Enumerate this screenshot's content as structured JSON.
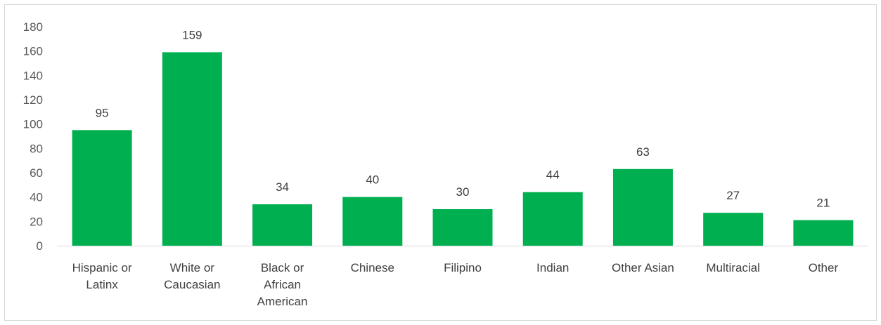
{
  "chart_data": {
    "type": "bar",
    "title": "",
    "xlabel": "",
    "ylabel": "",
    "ylim": [
      0,
      180
    ],
    "y_ticks": [
      0,
      20,
      40,
      60,
      80,
      100,
      120,
      140,
      160,
      180
    ],
    "grid": false,
    "legend": "none",
    "categories": [
      [
        "Hispanic or",
        "Latinx"
      ],
      [
        "White or",
        "Caucasian"
      ],
      [
        "Black or",
        "African",
        "American"
      ],
      [
        "Chinese"
      ],
      [
        "Filipino"
      ],
      [
        "Indian"
      ],
      [
        "Other Asian"
      ],
      [
        "Multiracial"
      ],
      [
        "Other"
      ]
    ],
    "values": [
      95,
      159,
      34,
      40,
      30,
      44,
      63,
      27,
      21
    ],
    "bar_color": "#00b050",
    "axis_color": "#d9d9d9"
  }
}
